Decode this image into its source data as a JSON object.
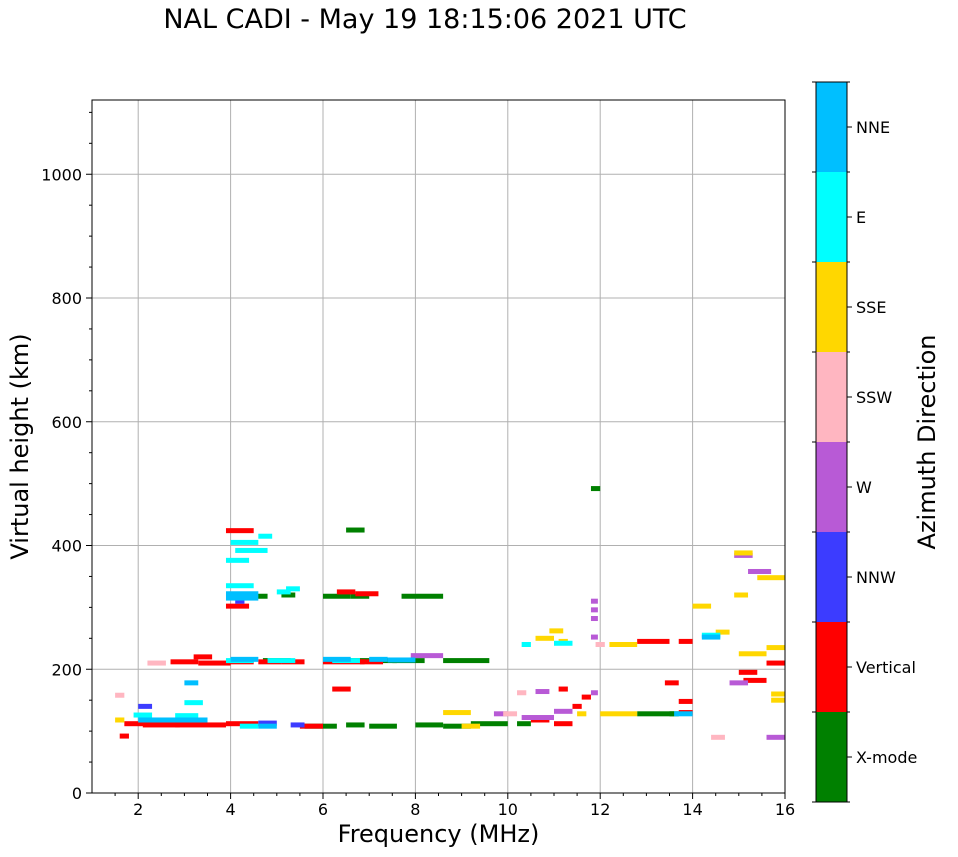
{
  "chart_data": {
    "type": "scatter",
    "title": "NAL CADI - May 19 18:15:06 2021 UTC",
    "xlabel": "Frequency (MHz)",
    "ylabel": "Virtual height (km)",
    "xlim": [
      1,
      16
    ],
    "ylim": [
      0,
      1120
    ],
    "xticks": [
      2,
      4,
      6,
      8,
      10,
      12,
      14,
      16
    ],
    "yticks": [
      0,
      200,
      400,
      600,
      800,
      1000
    ],
    "xtick_labels": [
      "2",
      "4",
      "6",
      "8",
      "10",
      "12",
      "14",
      "16"
    ],
    "ytick_labels": [
      "0",
      "200",
      "400",
      "600",
      "800",
      "1000"
    ],
    "grid": true,
    "colorbar": {
      "label": "Azimuth Direction",
      "categories": [
        "X-mode",
        "Vertical",
        "NNW",
        "W",
        "SSW",
        "SSE",
        "E",
        "NNE"
      ],
      "colors": {
        "X-mode": "#008000",
        "Vertical": "#ff0000",
        "NNW": "#3c3cff",
        "W": "#b85ad6",
        "SSW": "#ffb6c1",
        "SSE": "#ffd700",
        "E": "#00ffff",
        "NNE": "#00bfff"
      }
    },
    "series": [
      {
        "name": "X-mode",
        "segments": [
          [
            4.3,
            4.8,
            318
          ],
          [
            4.7,
            5.3,
            214
          ],
          [
            5.6,
            6.3,
            108
          ],
          [
            6.0,
            7.0,
            214
          ],
          [
            6.0,
            6.6,
            318
          ],
          [
            6.5,
            6.9,
            425
          ],
          [
            6.6,
            7.0,
            318
          ],
          [
            7.0,
            7.6,
            214
          ],
          [
            7.5,
            8.2,
            214
          ],
          [
            7.7,
            8.6,
            318
          ],
          [
            8.6,
            9.6,
            214
          ],
          [
            8.0,
            8.6,
            110
          ],
          [
            8.6,
            9.2,
            108
          ],
          [
            9.2,
            10.0,
            112
          ],
          [
            6.5,
            6.9,
            110
          ],
          [
            7.0,
            7.6,
            108
          ],
          [
            5.1,
            5.4,
            320
          ],
          [
            10.2,
            10.5,
            112
          ],
          [
            11.8,
            12.0,
            492
          ],
          [
            13.5,
            13.7,
            128
          ],
          [
            12.8,
            13.6,
            128
          ]
        ]
      },
      {
        "name": "Vertical",
        "segments": [
          [
            3.9,
            4.4,
            302
          ],
          [
            3.9,
            4.5,
            424
          ],
          [
            3.9,
            4.5,
            212
          ],
          [
            3.3,
            4.0,
            210
          ],
          [
            2.7,
            3.3,
            212
          ],
          [
            1.7,
            2.3,
            112
          ],
          [
            2.1,
            2.9,
            110
          ],
          [
            2.8,
            3.9,
            110
          ],
          [
            3.9,
            4.6,
            112
          ],
          [
            4.6,
            5.1,
            212
          ],
          [
            5.1,
            5.6,
            212
          ],
          [
            6.0,
            6.9,
            212
          ],
          [
            6.8,
            7.3,
            212
          ],
          [
            6.2,
            6.6,
            168
          ],
          [
            6.3,
            6.7,
            325
          ],
          [
            6.7,
            7.2,
            322
          ],
          [
            3.2,
            3.6,
            220
          ],
          [
            1.6,
            1.8,
            92
          ],
          [
            5.5,
            6.0,
            108
          ],
          [
            11.1,
            11.3,
            168
          ],
          [
            11.0,
            11.4,
            112
          ],
          [
            11.6,
            11.8,
            155
          ],
          [
            12.8,
            13.5,
            245
          ],
          [
            13.4,
            13.7,
            178
          ],
          [
            13.7,
            14.0,
            245
          ],
          [
            13.7,
            14.0,
            148
          ],
          [
            13.7,
            14.0,
            130
          ],
          [
            15.0,
            15.4,
            195
          ],
          [
            15.1,
            15.6,
            182
          ],
          [
            15.6,
            16.0,
            210
          ],
          [
            10.5,
            10.9,
            118
          ],
          [
            11.4,
            11.6,
            140
          ]
        ]
      },
      {
        "name": "NNW",
        "segments": [
          [
            4.1,
            4.3,
            310
          ],
          [
            5.3,
            5.6,
            110
          ],
          [
            4.6,
            5.0,
            113
          ],
          [
            2.0,
            2.3,
            140
          ]
        ]
      },
      {
        "name": "W",
        "segments": [
          [
            7.9,
            8.6,
            222
          ],
          [
            10.3,
            11.0,
            122
          ],
          [
            11.0,
            11.4,
            132
          ],
          [
            15.2,
            15.7,
            358
          ],
          [
            15.6,
            16.0,
            90
          ],
          [
            14.8,
            15.2,
            178
          ],
          [
            14.9,
            15.3,
            384
          ],
          [
            10.6,
            10.9,
            164
          ],
          [
            11.8,
            11.95,
            162
          ],
          [
            11.8,
            11.95,
            252
          ],
          [
            11.8,
            11.95,
            282
          ],
          [
            11.8,
            11.95,
            296
          ],
          [
            11.8,
            11.95,
            310
          ],
          [
            9.7,
            10.0,
            128
          ]
        ]
      },
      {
        "name": "SSW",
        "segments": [
          [
            2.2,
            2.6,
            210
          ],
          [
            1.5,
            1.7,
            158
          ],
          [
            14.4,
            14.7,
            90
          ],
          [
            10.2,
            10.4,
            162
          ],
          [
            9.9,
            10.2,
            128
          ],
          [
            11.9,
            12.1,
            240
          ]
        ]
      },
      {
        "name": "SSE",
        "segments": [
          [
            12.2,
            12.8,
            240
          ],
          [
            12.0,
            12.8,
            128
          ],
          [
            14.0,
            14.4,
            302
          ],
          [
            14.5,
            14.8,
            260
          ],
          [
            15.4,
            16.0,
            348
          ],
          [
            15.6,
            16.0,
            235
          ],
          [
            15.7,
            16.0,
            160
          ],
          [
            15.7,
            16.0,
            150
          ],
          [
            15.0,
            15.6,
            225
          ],
          [
            14.9,
            15.2,
            320
          ],
          [
            8.6,
            9.2,
            130
          ],
          [
            9.0,
            9.4,
            108
          ],
          [
            1.5,
            1.7,
            118
          ],
          [
            11.5,
            11.7,
            128
          ],
          [
            10.6,
            11.0,
            250
          ],
          [
            11.1,
            11.3,
            245
          ],
          [
            10.9,
            11.2,
            262
          ],
          [
            14.9,
            15.3,
            388
          ]
        ]
      },
      {
        "name": "E",
        "segments": [
          [
            4.0,
            4.6,
            405
          ],
          [
            4.1,
            4.8,
            392
          ],
          [
            4.6,
            4.9,
            415
          ],
          [
            3.9,
            4.4,
            376
          ],
          [
            3.9,
            4.5,
            335
          ],
          [
            3.9,
            4.5,
            214
          ],
          [
            5.0,
            5.3,
            325
          ],
          [
            4.8,
            5.4,
            214
          ],
          [
            4.2,
            4.6,
            108
          ],
          [
            1.9,
            2.3,
            126
          ],
          [
            3.0,
            3.4,
            146
          ],
          [
            2.8,
            3.3,
            125
          ],
          [
            10.3,
            10.5,
            240
          ],
          [
            11.0,
            11.4,
            242
          ],
          [
            14.2,
            14.6,
            255
          ],
          [
            5.2,
            5.5,
            330
          ],
          [
            6.2,
            6.8,
            214
          ]
        ]
      },
      {
        "name": "NNE",
        "segments": [
          [
            3.0,
            3.3,
            178
          ],
          [
            3.9,
            4.6,
            315
          ],
          [
            3.9,
            4.6,
            322
          ],
          [
            4.0,
            4.6,
            216
          ],
          [
            2.3,
            3.1,
            118
          ],
          [
            2.8,
            3.5,
            118
          ],
          [
            2.0,
            2.5,
            118
          ],
          [
            4.6,
            5.0,
            108
          ],
          [
            6.0,
            6.6,
            216
          ],
          [
            7.0,
            7.4,
            216
          ],
          [
            7.4,
            8.0,
            215
          ],
          [
            14.2,
            14.6,
            252
          ],
          [
            13.6,
            14.0,
            128
          ]
        ]
      }
    ]
  }
}
